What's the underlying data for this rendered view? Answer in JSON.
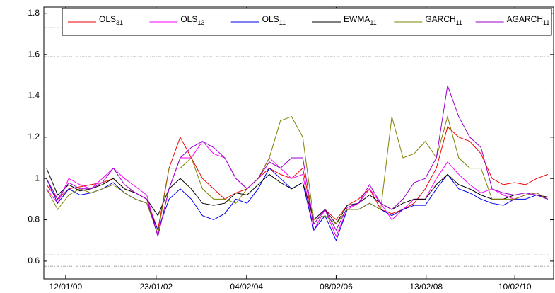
{
  "chart_data": {
    "type": "line",
    "x": [
      1999.6,
      1999.85,
      2000.1,
      2000.35,
      2000.6,
      2000.85,
      2001.1,
      2001.35,
      2001.6,
      2001.85,
      2002.1,
      2002.35,
      2002.6,
      2002.85,
      2003.1,
      2003.35,
      2003.6,
      2003.85,
      2004.1,
      2004.35,
      2004.6,
      2004.85,
      2005.1,
      2005.35,
      2005.6,
      2005.85,
      2006.1,
      2006.35,
      2006.6,
      2006.85,
      2007.1,
      2007.35,
      2007.6,
      2007.85,
      2008.1,
      2008.35,
      2008.6,
      2008.85,
      2009.1,
      2009.35,
      2009.6,
      2009.85,
      2010.1,
      2010.35,
      2010.6,
      2010.85
    ],
    "series": [
      {
        "name": "OLS31",
        "color": "#ee0000",
        "values": [
          0.97,
          0.9,
          0.95,
          0.96,
          0.97,
          0.98,
          1.0,
          0.95,
          0.93,
          0.9,
          0.75,
          1.05,
          1.2,
          1.1,
          1.0,
          0.95,
          0.9,
          0.93,
          0.95,
          1.0,
          1.05,
          1.02,
          1.0,
          1.05,
          0.78,
          0.85,
          0.8,
          0.87,
          0.9,
          0.95,
          0.85,
          0.83,
          0.85,
          0.88,
          0.95,
          1.05,
          1.25,
          1.2,
          1.18,
          1.12,
          1.0,
          0.97,
          0.98,
          0.97,
          1.0,
          1.02
        ]
      },
      {
        "name": "OLS13",
        "color": "#ff00ff",
        "values": [
          0.95,
          0.88,
          1.0,
          0.97,
          0.95,
          1.0,
          1.05,
          1.0,
          0.96,
          0.92,
          0.72,
          0.95,
          1.1,
          1.1,
          1.18,
          1.12,
          1.1,
          1.0,
          0.95,
          1.0,
          1.1,
          1.05,
          1.0,
          1.02,
          0.75,
          0.85,
          0.72,
          0.85,
          0.88,
          0.95,
          0.88,
          0.8,
          0.85,
          0.9,
          0.9,
          1.0,
          1.08,
          1.02,
          0.97,
          0.93,
          0.95,
          0.92,
          0.9,
          0.92,
          0.93,
          0.9
        ]
      },
      {
        "name": "OLS11",
        "color": "#0000ee",
        "values": [
          1.0,
          0.88,
          0.95,
          0.92,
          0.93,
          0.95,
          0.98,
          0.93,
          0.9,
          0.88,
          0.75,
          0.9,
          0.95,
          0.9,
          0.82,
          0.8,
          0.83,
          0.9,
          0.88,
          0.95,
          1.05,
          1.0,
          0.95,
          0.98,
          0.75,
          0.82,
          0.7,
          0.85,
          0.85,
          0.88,
          0.85,
          0.82,
          0.85,
          0.87,
          0.87,
          0.95,
          1.02,
          0.95,
          0.93,
          0.9,
          0.88,
          0.87,
          0.9,
          0.9,
          0.92,
          0.9
        ]
      },
      {
        "name": "EWMA11",
        "color": "#000000",
        "values": [
          1.05,
          0.92,
          0.97,
          0.94,
          0.95,
          0.97,
          1.0,
          0.95,
          0.93,
          0.9,
          0.82,
          0.95,
          1.0,
          0.95,
          0.88,
          0.87,
          0.88,
          0.93,
          0.92,
          0.97,
          1.02,
          0.98,
          0.95,
          0.98,
          0.8,
          0.85,
          0.78,
          0.87,
          0.88,
          0.92,
          0.88,
          0.85,
          0.88,
          0.9,
          0.9,
          0.97,
          1.02,
          0.97,
          0.95,
          0.92,
          0.9,
          0.9,
          0.92,
          0.92,
          0.92,
          0.91
        ]
      },
      {
        "name": "GARCH11",
        "color": "#808000",
        "values": [
          0.95,
          0.85,
          0.92,
          0.95,
          0.93,
          0.95,
          0.97,
          0.93,
          0.9,
          0.88,
          0.73,
          1.05,
          1.05,
          1.1,
          0.95,
          0.9,
          0.9,
          0.88,
          0.95,
          1.0,
          1.1,
          1.28,
          1.3,
          1.2,
          0.8,
          0.82,
          0.78,
          0.85,
          0.85,
          0.88,
          0.85,
          1.3,
          1.1,
          1.12,
          1.18,
          1.1,
          1.3,
          1.1,
          1.05,
          1.05,
          0.9,
          0.9,
          0.9,
          0.92,
          0.93,
          0.9
        ]
      },
      {
        "name": "AGARCH11",
        "color": "#9900cc",
        "values": [
          1.0,
          0.9,
          0.98,
          0.95,
          0.95,
          0.98,
          1.05,
          0.97,
          0.93,
          0.9,
          0.72,
          0.95,
          1.1,
          1.15,
          1.18,
          1.15,
          1.1,
          1.0,
          0.95,
          1.0,
          1.08,
          1.05,
          1.1,
          1.1,
          0.78,
          0.85,
          0.75,
          0.86,
          0.88,
          0.97,
          0.88,
          0.85,
          0.9,
          0.98,
          1.0,
          1.1,
          1.45,
          1.3,
          1.2,
          1.15,
          0.95,
          0.93,
          0.92,
          0.93,
          0.92,
          0.9
        ]
      }
    ],
    "xlim": [
      1999.54,
      2010.98
    ],
    "xticks": [
      {
        "value": 2000.03,
        "label": "12/01/00"
      },
      {
        "value": 2002.06,
        "label": "23/01/02"
      },
      {
        "value": 2004.09,
        "label": "04/02/04"
      },
      {
        "value": 2006.1,
        "label": "08/02/06"
      },
      {
        "value": 2008.12,
        "label": "13/02/08"
      },
      {
        "value": 2010.11,
        "label": "10/02/10"
      }
    ],
    "ylim": [
      0.514,
      1.83
    ],
    "yticks": [
      0.6,
      0.8,
      {
        "value": 1,
        "label": "1"
      },
      1.2,
      1.4,
      1.6,
      1.8
    ],
    "hlines": [
      1.73,
      1.59,
      0.63,
      0.575
    ],
    "legend": "top"
  }
}
